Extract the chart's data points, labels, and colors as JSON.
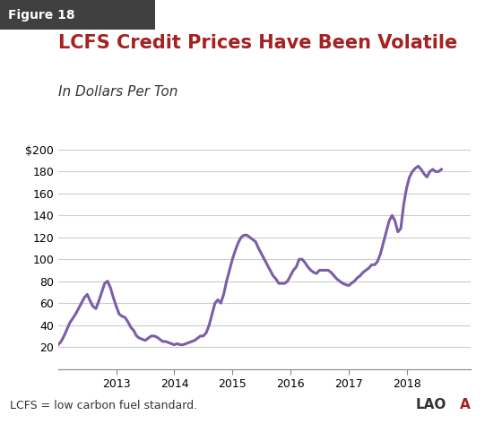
{
  "title": "LCFS Credit Prices Have Been Volatile",
  "subtitle": "In Dollars Per Ton",
  "figure_label": "Figure 18",
  "footnote": "LCFS = low carbon fuel standard.",
  "line_color": "#7B5EA7",
  "line_width": 2.2,
  "background_color": "#FFFFFF",
  "yticks": [
    0,
    20,
    40,
    60,
    80,
    100,
    120,
    140,
    160,
    180,
    200
  ],
  "ytick_labels": [
    "",
    "20",
    "40",
    "60",
    "80",
    "100",
    "120",
    "140",
    "160",
    "180",
    "$200"
  ],
  "ylim": [
    0,
    205
  ],
  "xtick_labels": [
    "2013",
    "2014",
    "2015",
    "2016",
    "2017",
    "2018"
  ],
  "title_color": "#A52122",
  "title_fontsize": 15,
  "subtitle_fontsize": 11,
  "footnote_fontsize": 9,
  "x": [
    0.0,
    0.05,
    0.1,
    0.15,
    0.2,
    0.25,
    0.3,
    0.35,
    0.4,
    0.45,
    0.5,
    0.55,
    0.6,
    0.65,
    0.7,
    0.75,
    0.8,
    0.85,
    0.9,
    0.95,
    1.0,
    1.05,
    1.1,
    1.15,
    1.2,
    1.25,
    1.3,
    1.35,
    1.4,
    1.45,
    1.5,
    1.55,
    1.6,
    1.65,
    1.7,
    1.75,
    1.8,
    1.85,
    1.9,
    1.95,
    2.0,
    2.05,
    2.1,
    2.15,
    2.2,
    2.25,
    2.3,
    2.35,
    2.4,
    2.45,
    2.5,
    2.55,
    2.6,
    2.65,
    2.7,
    2.75,
    2.8,
    2.85,
    2.9,
    2.95,
    3.0,
    3.05,
    3.1,
    3.15,
    3.2,
    3.25,
    3.3,
    3.35,
    3.4,
    3.45,
    3.5,
    3.55,
    3.6,
    3.65,
    3.7,
    3.75,
    3.8,
    3.85,
    3.9,
    3.95,
    4.0,
    4.05,
    4.1,
    4.15,
    4.2,
    4.25,
    4.3,
    4.35,
    4.4,
    4.45,
    4.5,
    4.55,
    4.6,
    4.65,
    4.7,
    4.75,
    4.8,
    4.85,
    4.9,
    4.95,
    5.0,
    5.05,
    5.1,
    5.15,
    5.2,
    5.25,
    5.3,
    5.35,
    5.4,
    5.45,
    5.5,
    5.55,
    5.6,
    5.65,
    5.7,
    5.75,
    5.8,
    5.85,
    5.9,
    5.95,
    6.0,
    6.05,
    6.1,
    6.15,
    6.2,
    6.25,
    6.3,
    6.35,
    6.4,
    6.45,
    6.5,
    6.55,
    6.6
  ],
  "y": [
    22,
    25,
    30,
    36,
    42,
    46,
    50,
    55,
    60,
    65,
    68,
    62,
    57,
    55,
    62,
    70,
    78,
    80,
    74,
    65,
    57,
    50,
    48,
    47,
    43,
    38,
    35,
    30,
    28,
    27,
    26,
    28,
    30,
    30,
    29,
    27,
    25,
    25,
    24,
    23,
    22,
    23,
    22,
    22,
    23,
    24,
    25,
    26,
    28,
    30,
    30,
    33,
    40,
    50,
    60,
    63,
    60,
    68,
    80,
    90,
    100,
    108,
    115,
    120,
    122,
    122,
    120,
    118,
    116,
    110,
    105,
    100,
    95,
    90,
    85,
    82,
    78,
    78,
    78,
    80,
    85,
    90,
    93,
    100,
    100,
    97,
    93,
    90,
    88,
    87,
    90,
    90,
    90,
    90,
    88,
    85,
    82,
    80,
    78,
    77,
    76,
    78,
    80,
    83,
    85,
    88,
    90,
    92,
    95,
    95,
    98,
    105,
    115,
    125,
    135,
    140,
    135,
    125,
    128,
    150,
    165,
    175,
    180,
    183,
    185,
    182,
    178,
    175,
    180,
    182,
    180,
    180,
    182
  ],
  "xstart": 0.5,
  "xend": 7.1,
  "xtick_positions": [
    1.0,
    2.0,
    3.0,
    4.0,
    5.0,
    6.0
  ]
}
